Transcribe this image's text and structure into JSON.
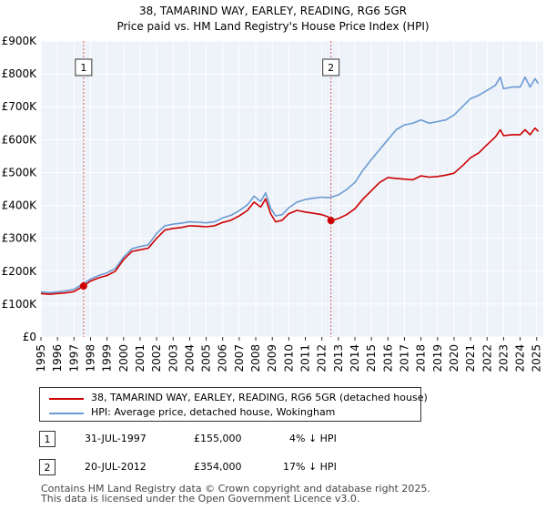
{
  "chart_data": {
    "type": "line",
    "title": "38, TAMARIND WAY, EARLEY, READING, RG6 5GR",
    "subtitle": "Price paid vs. HM Land Registry's House Price Index (HPI)",
    "xlabel": "",
    "ylabel": "",
    "xlim": [
      1995,
      2025.4
    ],
    "ylim": [
      0,
      900000
    ],
    "grid": true,
    "x_ticks": [
      1995,
      1996,
      1997,
      1998,
      1999,
      2000,
      2001,
      2002,
      2003,
      2004,
      2005,
      2006,
      2007,
      2008,
      2009,
      2010,
      2011,
      2012,
      2013,
      2014,
      2015,
      2016,
      2017,
      2018,
      2019,
      2020,
      2021,
      2022,
      2023,
      2024,
      2025
    ],
    "y_ticks": [
      0,
      100000,
      200000,
      300000,
      400000,
      500000,
      600000,
      700000,
      800000,
      900000
    ],
    "y_tick_labels": [
      "£0",
      "£100K",
      "£200K",
      "£300K",
      "£400K",
      "£500K",
      "£600K",
      "£700K",
      "£800K",
      "£900K"
    ],
    "series": [
      {
        "name": "38, TAMARIND WAY, EARLEY, READING, RG6 5GR (detached house)",
        "color": "#cc0000",
        "x": [
          1995.0,
          1995.5,
          1996.0,
          1996.5,
          1997.0,
          1997.58,
          1998.0,
          1998.5,
          1999.0,
          1999.5,
          2000.0,
          2000.5,
          2001.0,
          2001.5,
          2002.0,
          2002.5,
          2003.0,
          2003.5,
          2004.0,
          2004.5,
          2005.0,
          2005.5,
          2006.0,
          2006.5,
          2007.0,
          2007.5,
          2007.9,
          2008.3,
          2008.6,
          2008.9,
          2009.2,
          2009.6,
          2010.0,
          2010.5,
          2011.0,
          2011.5,
          2012.0,
          2012.4,
          2012.55,
          2012.7,
          2013.0,
          2013.5,
          2014.0,
          2014.5,
          2015.0,
          2015.5,
          2016.0,
          2016.5,
          2017.0,
          2017.5,
          2018.0,
          2018.5,
          2019.0,
          2019.5,
          2020.0,
          2020.5,
          2021.0,
          2021.5,
          2022.0,
          2022.5,
          2022.8,
          2023.0,
          2023.5,
          2024.0,
          2024.3,
          2024.6,
          2024.9,
          2025.1
        ],
        "values": [
          132000,
          130000,
          132000,
          134000,
          138000,
          155000,
          170000,
          180000,
          187000,
          200000,
          235000,
          260000,
          265000,
          270000,
          300000,
          325000,
          330000,
          333000,
          338000,
          337000,
          335000,
          338000,
          348000,
          355000,
          368000,
          385000,
          410000,
          395000,
          420000,
          375000,
          350000,
          355000,
          375000,
          385000,
          380000,
          376000,
          372000,
          365000,
          354000,
          356000,
          360000,
          372000,
          390000,
          420000,
          445000,
          470000,
          485000,
          482000,
          480000,
          478000,
          490000,
          486000,
          488000,
          492000,
          498000,
          520000,
          545000,
          560000,
          585000,
          608000,
          630000,
          612000,
          615000,
          615000,
          630000,
          615000,
          635000,
          625000
        ]
      },
      {
        "name": "HPI: Average price, detached house, Wokingham",
        "color": "#6a9bd2",
        "x": [
          1995.0,
          1995.5,
          1996.0,
          1996.5,
          1997.0,
          1997.58,
          1998.0,
          1998.5,
          1999.0,
          1999.5,
          2000.0,
          2000.5,
          2001.0,
          2001.5,
          2002.0,
          2002.5,
          2003.0,
          2003.5,
          2004.0,
          2004.5,
          2005.0,
          2005.5,
          2006.0,
          2006.5,
          2007.0,
          2007.5,
          2007.9,
          2008.3,
          2008.6,
          2008.9,
          2009.2,
          2009.6,
          2010.0,
          2010.5,
          2011.0,
          2011.5,
          2012.0,
          2012.4,
          2012.55,
          2012.7,
          2013.0,
          2013.5,
          2014.0,
          2014.5,
          2015.0,
          2015.5,
          2016.0,
          2016.5,
          2017.0,
          2017.5,
          2018.0,
          2018.5,
          2019.0,
          2019.5,
          2020.0,
          2020.5,
          2021.0,
          2021.5,
          2022.0,
          2022.5,
          2022.8,
          2023.0,
          2023.5,
          2024.0,
          2024.3,
          2024.6,
          2024.9,
          2025.1
        ],
        "values": [
          137000,
          135000,
          137000,
          140000,
          145000,
          162000,
          176000,
          187000,
          195000,
          208000,
          243000,
          268000,
          275000,
          280000,
          315000,
          338000,
          343000,
          346000,
          350000,
          349000,
          347000,
          350000,
          362000,
          370000,
          384000,
          402000,
          428000,
          412000,
          438000,
          392000,
          368000,
          372000,
          393000,
          410000,
          418000,
          422000,
          425000,
          424000,
          425000,
          427000,
          432000,
          448000,
          470000,
          508000,
          540000,
          570000,
          600000,
          630000,
          645000,
          650000,
          660000,
          650000,
          655000,
          660000,
          675000,
          700000,
          725000,
          735000,
          750000,
          765000,
          790000,
          755000,
          760000,
          760000,
          790000,
          760000,
          785000,
          770000
        ]
      }
    ],
    "sales": [
      {
        "label": "1",
        "x": 1997.58,
        "value": 155000
      },
      {
        "label": "2",
        "x": 2012.55,
        "value": 354000
      }
    ]
  },
  "legend": {
    "items": [
      {
        "label": "38, TAMARIND WAY, EARLEY, READING, RG6 5GR (detached house)",
        "color": "#cc0000"
      },
      {
        "label": "HPI: Average price, detached house, Wokingham",
        "color": "#6a9bd2"
      }
    ]
  },
  "transactions": [
    {
      "num": "1",
      "date": "31-JUL-1997",
      "price": "£155,000",
      "hpi": "4% ↓ HPI"
    },
    {
      "num": "2",
      "date": "20-JUL-2012",
      "price": "£354,000",
      "hpi": "17% ↓ HPI"
    }
  ],
  "footer": {
    "line1": "Contains HM Land Registry data © Crown copyright and database right 2025.",
    "line2": "This data is licensed under the Open Government Licence v3.0."
  }
}
